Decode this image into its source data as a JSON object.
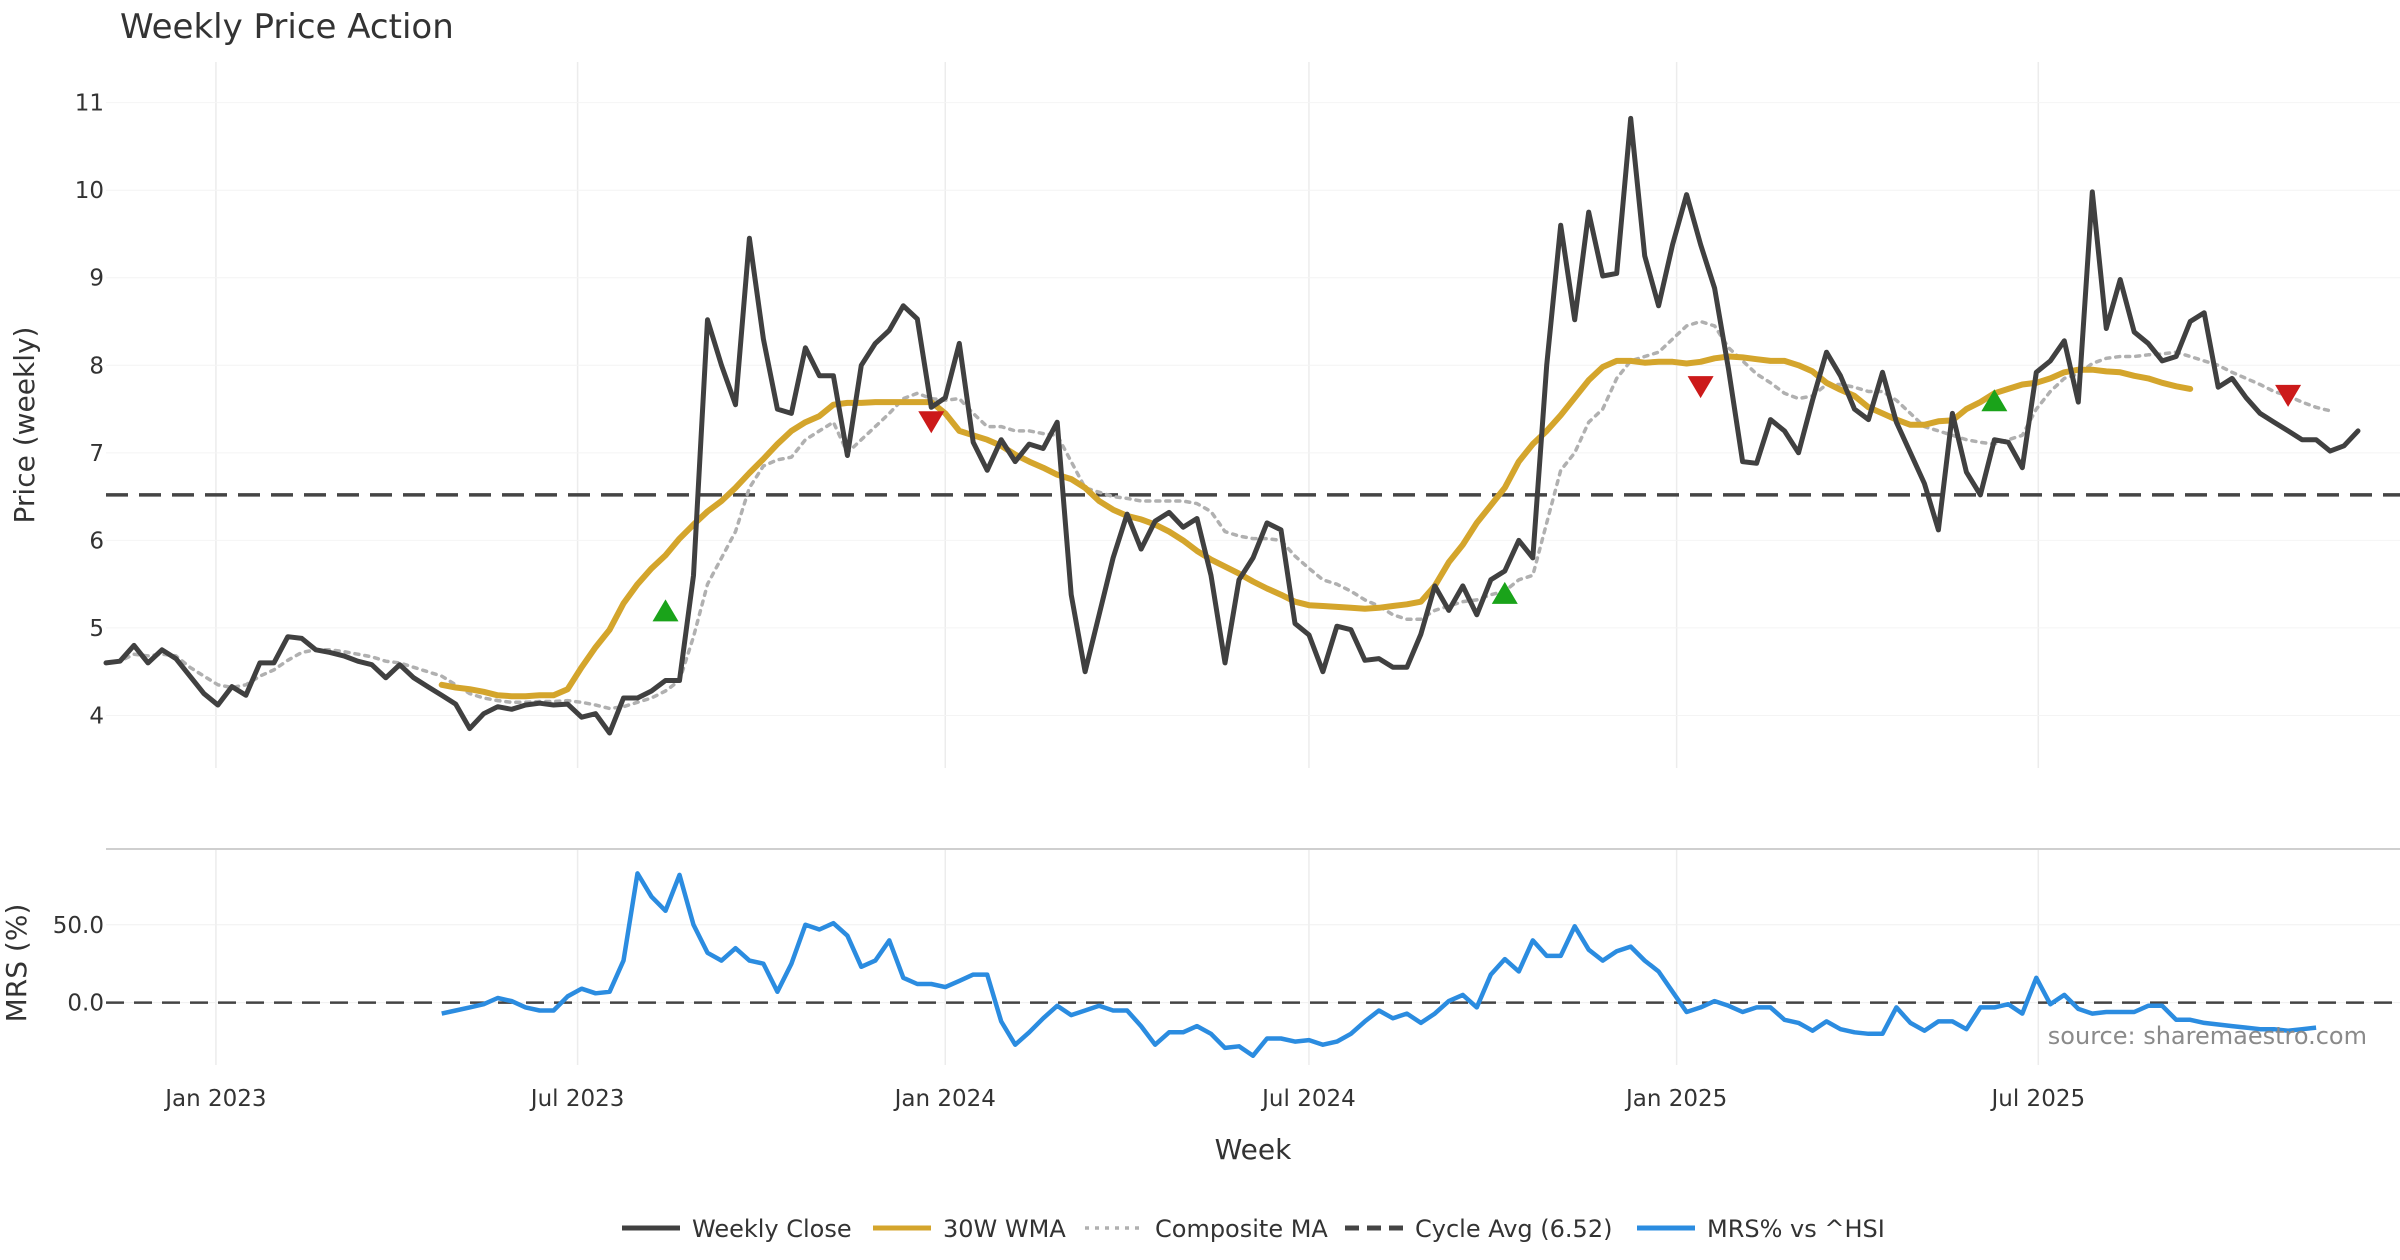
{
  "chart_data": {
    "type": "line",
    "title": "Weekly Price Action",
    "xlabel": "Week",
    "source": "source: sharemaestro.com",
    "x_ticks": [
      "Jan 2023",
      "Jul 2023",
      "Jan 2024",
      "Jul 2024",
      "Jan 2025",
      "Jul 2025"
    ],
    "x_range": [
      "2022-11-07",
      "2025-12-29"
    ],
    "grid": true,
    "legend_position": "bottom-center",
    "price_panel": {
      "ylabel": "Price (weekly)",
      "ylim": [
        3.4,
        11.35
      ],
      "y_ticks": [
        "4",
        "5",
        "6",
        "7",
        "8",
        "9",
        "10",
        "11"
      ],
      "series": [
        {
          "name": "Weekly Close",
          "color": "#404040",
          "start_date": "2022-11-07",
          "interval_days": 7,
          "values": [
            4.6,
            4.62,
            4.8,
            4.6,
            4.75,
            4.65,
            4.45,
            4.25,
            4.12,
            4.33,
            4.23,
            4.6,
            4.6,
            4.9,
            4.88,
            4.75,
            4.72,
            4.68,
            4.62,
            4.58,
            4.43,
            4.58,
            4.43,
            4.33,
            4.23,
            4.13,
            3.85,
            4.02,
            4.1,
            4.07,
            4.12,
            4.14,
            4.12,
            4.13,
            3.98,
            4.02,
            3.8,
            4.2,
            4.2,
            4.28,
            4.4,
            4.4,
            5.6,
            8.52,
            8.0,
            7.55,
            9.45,
            8.3,
            7.5,
            7.45,
            8.2,
            7.88,
            7.88,
            6.97,
            8.0,
            8.25,
            8.4,
            8.68,
            8.53,
            7.52,
            7.63,
            8.25,
            7.12,
            6.8,
            7.15,
            6.9,
            7.1,
            7.05,
            7.35,
            5.38,
            4.5,
            5.15,
            5.8,
            6.3,
            5.9,
            6.22,
            6.32,
            6.15,
            6.25,
            5.6,
            4.6,
            5.55,
            5.8,
            6.2,
            6.12,
            5.05,
            4.92,
            4.5,
            5.02,
            4.98,
            4.63,
            4.65,
            4.55,
            4.55,
            4.93,
            5.48,
            5.2,
            5.48,
            5.15,
            5.55,
            5.65,
            6.0,
            5.8,
            8.0,
            9.6,
            8.52,
            9.75,
            9.02,
            9.05,
            10.82,
            9.25,
            8.68,
            9.38,
            9.95,
            9.38,
            8.88,
            7.95,
            6.9,
            6.88,
            7.38,
            7.25,
            7.0,
            7.6,
            8.15,
            7.88,
            7.5,
            7.38,
            7.92,
            7.35,
            7.0,
            6.65,
            6.12,
            7.45,
            6.78,
            6.52,
            7.15,
            7.12,
            6.83,
            7.92,
            8.05,
            8.28,
            7.58,
            9.98,
            8.42,
            8.98,
            8.38,
            8.25,
            8.05,
            8.1,
            8.5,
            8.6,
            7.75,
            7.85,
            7.63,
            7.45,
            7.35,
            7.25,
            7.15,
            7.15,
            7.02,
            7.08,
            7.25
          ]
        },
        {
          "name": "30W WMA",
          "color": "#d4a52c",
          "start_date": "2023-04-24",
          "interval_days": 7,
          "values": [
            4.35,
            4.32,
            4.3,
            4.27,
            4.23,
            4.22,
            4.22,
            4.23,
            4.23,
            4.3,
            4.55,
            4.78,
            4.98,
            5.28,
            5.5,
            5.68,
            5.83,
            6.02,
            6.18,
            6.33,
            6.45,
            6.6,
            6.77,
            6.93,
            7.1,
            7.25,
            7.35,
            7.42,
            7.55,
            7.57,
            7.57,
            7.58,
            7.58,
            7.58,
            7.58,
            7.58,
            7.45,
            7.25,
            7.2,
            7.15,
            7.08,
            6.98,
            6.9,
            6.83,
            6.75,
            6.7,
            6.6,
            6.45,
            6.35,
            6.28,
            6.24,
            6.18,
            6.1,
            6.0,
            5.88,
            5.78,
            5.7,
            5.62,
            5.53,
            5.45,
            5.38,
            5.3,
            5.26,
            5.25,
            5.24,
            5.23,
            5.22,
            5.23,
            5.25,
            5.27,
            5.3,
            5.48,
            5.75,
            5.95,
            6.2,
            6.4,
            6.6,
            6.9,
            7.1,
            7.25,
            7.43,
            7.63,
            7.83,
            7.98,
            8.05,
            8.05,
            8.03,
            8.04,
            8.04,
            8.02,
            8.04,
            8.08,
            8.1,
            8.09,
            8.07,
            8.05,
            8.05,
            8.0,
            7.93,
            7.8,
            7.72,
            7.65,
            7.52,
            7.45,
            7.38,
            7.32,
            7.32,
            7.36,
            7.37,
            7.5,
            7.58,
            7.68,
            7.73,
            7.78,
            7.8,
            7.85,
            7.92,
            7.95,
            7.95,
            7.93,
            7.92,
            7.88,
            7.85,
            7.8,
            7.76,
            7.73
          ]
        },
        {
          "name": "Composite MA",
          "color": "#b0b0b0",
          "start_date": "2022-11-07",
          "interval_days": 7,
          "values": [
            4.6,
            4.62,
            4.7,
            4.68,
            4.7,
            4.68,
            4.55,
            4.45,
            4.35,
            4.32,
            4.35,
            4.45,
            4.52,
            4.63,
            4.72,
            4.75,
            4.75,
            4.73,
            4.7,
            4.67,
            4.62,
            4.6,
            4.55,
            4.5,
            4.45,
            4.35,
            4.25,
            4.2,
            4.17,
            4.15,
            4.15,
            4.16,
            4.16,
            4.17,
            4.15,
            4.12,
            4.08,
            4.1,
            4.15,
            4.2,
            4.28,
            4.4,
            4.9,
            5.5,
            5.8,
            6.1,
            6.6,
            6.85,
            6.92,
            6.95,
            7.15,
            7.25,
            7.35,
            7.0,
            7.15,
            7.3,
            7.45,
            7.62,
            7.68,
            7.62,
            7.6,
            7.62,
            7.45,
            7.3,
            7.3,
            7.25,
            7.25,
            7.22,
            7.2,
            6.9,
            6.6,
            6.55,
            6.5,
            6.48,
            6.45,
            6.45,
            6.45,
            6.45,
            6.42,
            6.33,
            6.1,
            6.05,
            6.02,
            6.02,
            6.0,
            5.82,
            5.68,
            5.55,
            5.5,
            5.42,
            5.32,
            5.25,
            5.15,
            5.1,
            5.1,
            5.2,
            5.25,
            5.3,
            5.32,
            5.38,
            5.42,
            5.55,
            5.6,
            6.2,
            6.8,
            7.0,
            7.35,
            7.5,
            7.85,
            8.05,
            8.1,
            8.15,
            8.3,
            8.45,
            8.5,
            8.45,
            8.2,
            8.05,
            7.9,
            7.8,
            7.68,
            7.62,
            7.65,
            7.78,
            7.78,
            7.75,
            7.7,
            7.7,
            7.6,
            7.45,
            7.3,
            7.25,
            7.2,
            7.15,
            7.12,
            7.1,
            7.15,
            7.2,
            7.5,
            7.7,
            7.85,
            7.9,
            8.02,
            8.08,
            8.1,
            8.1,
            8.12,
            8.13,
            8.15,
            8.1,
            8.05,
            8.0,
            7.92,
            7.85,
            7.78,
            7.7,
            7.65,
            7.58,
            7.52,
            7.48
          ]
        }
      ],
      "hlines": [
        {
          "name": "Cycle Avg (6.52)",
          "y": 6.52,
          "color": "#444444",
          "style": "dashed"
        }
      ],
      "markers": {
        "buy": {
          "color": "#1aa31a",
          "shape": "triangle-up",
          "points": [
            {
              "x": "2023-08-14",
              "y": 5.2
            },
            {
              "x": "2024-10-07",
              "y": 5.4
            },
            {
              "x": "2025-06-09",
              "y": 7.6
            }
          ]
        },
        "sell": {
          "color": "#cc1a1a",
          "shape": "triangle-down",
          "points": [
            {
              "x": "2023-12-25",
              "y": 7.35
            },
            {
              "x": "2025-01-13",
              "y": 7.75
            },
            {
              "x": "2025-11-03",
              "y": 7.65
            }
          ]
        }
      }
    },
    "mrs_panel": {
      "ylabel": "MRS (%)",
      "ylim": [
        -40,
        98
      ],
      "y_ticks": [
        0,
        50
      ],
      "y_tick_labels": [
        "0.0",
        "50.0"
      ],
      "hline": {
        "y": 0,
        "color": "#444444",
        "style": "dashed"
      },
      "series": [
        {
          "name": "MRS% vs ^HSI",
          "color": "#2b8ce0",
          "start_date": "2023-04-24",
          "interval_days": 7,
          "values": [
            -7,
            -5,
            -3,
            -1,
            3,
            1,
            -3,
            -5,
            -5,
            4,
            9,
            6,
            7,
            27,
            83,
            68,
            59,
            82,
            50,
            32,
            27,
            35,
            27,
            25,
            7,
            25,
            50,
            47,
            51,
            43,
            23,
            27,
            40,
            16,
            12,
            12,
            10,
            14,
            18,
            18,
            -12,
            -27,
            -19,
            -10,
            -2,
            -8,
            -5,
            -2,
            -5,
            -5,
            -15,
            -27,
            -19,
            -19,
            -15,
            -20,
            -29,
            -28,
            -34,
            -23,
            -23,
            -25,
            -24,
            -27,
            -25,
            -20,
            -12,
            -5,
            -10,
            -7,
            -13,
            -7,
            1,
            5,
            -3,
            18,
            28,
            20,
            40,
            30,
            30,
            49,
            34,
            27,
            33,
            36,
            27,
            20,
            7,
            -6,
            -3,
            1,
            -2,
            -6,
            -3,
            -3,
            -11,
            -13,
            -18,
            -12,
            -17,
            -19,
            -20,
            -20,
            -3,
            -13,
            -18,
            -12,
            -12,
            -17,
            -3,
            -3,
            -1,
            -7,
            16,
            -1,
            5,
            -4,
            -7,
            -6,
            -6,
            -6,
            -2,
            -2,
            -11,
            -11,
            -13,
            -14,
            -15,
            -16,
            -17,
            -17,
            -18,
            -17,
            -16
          ]
        }
      ]
    },
    "legend": [
      {
        "label": "Weekly Close",
        "color": "#404040",
        "style": "solid"
      },
      {
        "label": "30W WMA",
        "color": "#d4a52c",
        "style": "solid"
      },
      {
        "label": "Composite MA",
        "color": "#b0b0b0",
        "style": "dotted"
      },
      {
        "label": "Cycle Avg (6.52)",
        "color": "#444444",
        "style": "dashed"
      },
      {
        "label": "MRS% vs ^HSI",
        "color": "#2b8ce0",
        "style": "solid"
      }
    ]
  }
}
